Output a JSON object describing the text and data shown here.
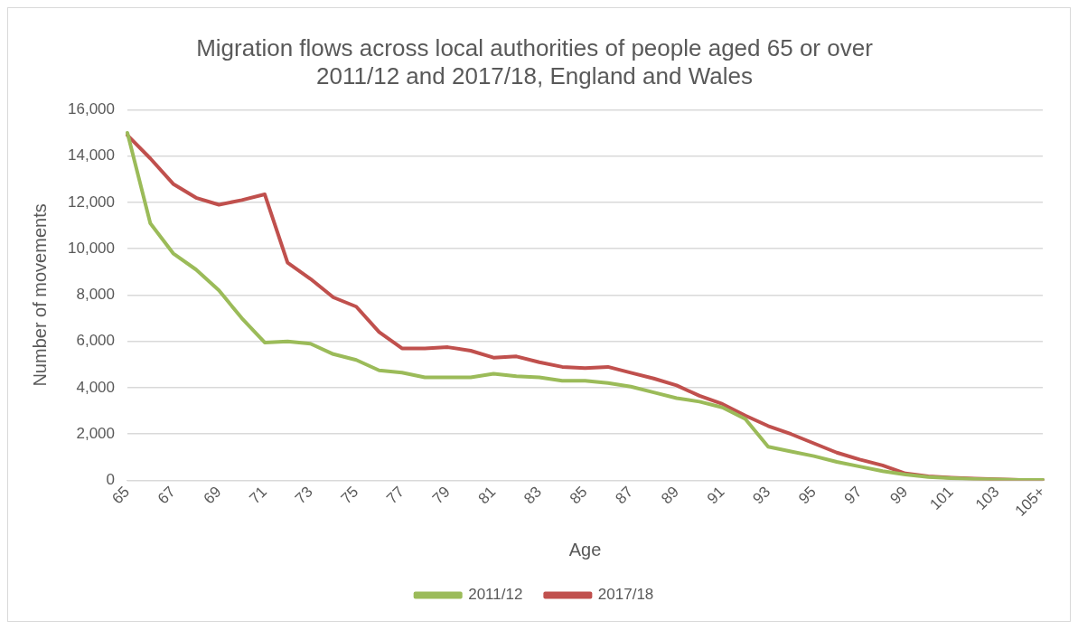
{
  "chart_data": {
    "type": "line",
    "title": "Migration flows across local authorities of people aged 65 or over\n2011/12 and 2017/18, England and Wales",
    "xlabel": "Age",
    "ylabel": "Number of movements",
    "categories": [
      "65",
      null,
      "67",
      null,
      "69",
      null,
      "71",
      null,
      "73",
      null,
      "75",
      null,
      "77",
      null,
      "79",
      null,
      "81",
      null,
      "83",
      null,
      "85",
      null,
      "87",
      null,
      "89",
      null,
      "91",
      null,
      "93",
      null,
      "95",
      null,
      "97",
      null,
      "99",
      null,
      "101",
      null,
      "103",
      null,
      "105+"
    ],
    "series": [
      {
        "name": "2011/12",
        "color": "#9bbb59",
        "values": [
          15000,
          11100,
          9800,
          9100,
          8200,
          7000,
          5950,
          6000,
          5900,
          5450,
          5200,
          4750,
          4650,
          4450,
          4450,
          4450,
          4600,
          4500,
          4450,
          4300,
          4300,
          4200,
          4050,
          3800,
          3550,
          3400,
          3150,
          2650,
          1450,
          1250,
          1050,
          800,
          600,
          400,
          250,
          150,
          100,
          60,
          40,
          20,
          20
        ]
      },
      {
        "name": "2017/18",
        "color": "#c0504d",
        "values": [
          14900,
          13900,
          12800,
          12200,
          11900,
          12100,
          12350,
          9400,
          8700,
          7900,
          7500,
          6400,
          5700,
          5700,
          5750,
          5600,
          5300,
          5350,
          5100,
          4900,
          4850,
          4900,
          4650,
          4400,
          4100,
          3650,
          3300,
          2800,
          2350,
          2000,
          1600,
          1200,
          900,
          650,
          300,
          180,
          120,
          80,
          50,
          20,
          20
        ]
      }
    ],
    "ylim": [
      0,
      16000
    ],
    "yticks": [
      0,
      {
        "value": 2000,
        "label": "2,000"
      },
      {
        "value": 4000,
        "label": "4,000"
      },
      {
        "value": 6000,
        "label": "6,000"
      },
      {
        "value": 8000,
        "label": "8,000"
      },
      {
        "value": 10000,
        "label": "10,000"
      },
      {
        "value": 12000,
        "label": "12,000"
      },
      {
        "value": 14000,
        "label": "14,000"
      },
      {
        "value": 16000,
        "label": "16,000"
      }
    ],
    "grid": "y",
    "legend": "bottom",
    "marker": "none",
    "line_style": "solid"
  }
}
